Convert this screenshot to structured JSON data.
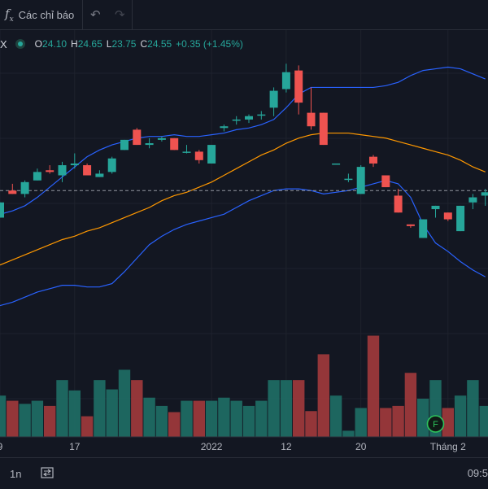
{
  "toolbar": {
    "indicators_label": "Các chỉ báo"
  },
  "legend": {
    "symbol": "X",
    "o_key": "O",
    "o_val": "24.10",
    "h_key": "H",
    "h_val": "24.65",
    "l_key": "L",
    "l_val": "23.75",
    "c_key": "C",
    "c_val": "24.55",
    "change": "+0.35 (+1.45%)"
  },
  "bottom": {
    "interval": "1n",
    "time": "09:5"
  },
  "chart_data": {
    "type": "candlestick",
    "price_range": [
      10.5,
      28.3
    ],
    "volume_max": 100,
    "current_price": 20.4,
    "x_ticks": [
      {
        "label": "9",
        "index": 0
      },
      {
        "label": "17",
        "index": 6
      },
      {
        "label": "2022",
        "index": 17
      },
      {
        "label": "12",
        "index": 23
      },
      {
        "label": "20",
        "index": 29
      },
      {
        "label": "Tháng 2",
        "index": 36
      }
    ],
    "candles": [
      {
        "o": 18.8,
        "h": 19.7,
        "l": 18.8,
        "c": 19.7,
        "v": 40
      },
      {
        "o": 20.4,
        "h": 20.8,
        "l": 20.2,
        "c": 20.2,
        "v": 35
      },
      {
        "o": 20.2,
        "h": 21.0,
        "l": 20.0,
        "c": 20.9,
        "v": 32
      },
      {
        "o": 21.0,
        "h": 21.7,
        "l": 21.0,
        "c": 21.5,
        "v": 35
      },
      {
        "o": 21.6,
        "h": 21.9,
        "l": 21.4,
        "c": 21.5,
        "v": 30
      },
      {
        "o": 21.3,
        "h": 22.1,
        "l": 20.9,
        "c": 21.9,
        "v": 55
      },
      {
        "o": 21.9,
        "h": 22.6,
        "l": 21.7,
        "c": 22.0,
        "v": 45
      },
      {
        "o": 21.9,
        "h": 22.0,
        "l": 21.3,
        "c": 21.3,
        "v": 20
      },
      {
        "o": 21.2,
        "h": 21.6,
        "l": 21.2,
        "c": 21.4,
        "v": 55
      },
      {
        "o": 21.5,
        "h": 22.4,
        "l": 21.4,
        "c": 22.3,
        "v": 46
      },
      {
        "o": 22.8,
        "h": 23.4,
        "l": 22.8,
        "c": 23.4,
        "v": 65
      },
      {
        "o": 24.0,
        "h": 24.1,
        "l": 23.1,
        "c": 23.1,
        "v": 55
      },
      {
        "o": 23.1,
        "h": 23.5,
        "l": 22.9,
        "c": 23.2,
        "v": 38
      },
      {
        "o": 23.4,
        "h": 23.6,
        "l": 23.3,
        "c": 23.5,
        "v": 30
      },
      {
        "o": 23.5,
        "h": 23.5,
        "l": 22.8,
        "c": 22.8,
        "v": 24
      },
      {
        "o": 22.7,
        "h": 23.1,
        "l": 22.6,
        "c": 22.7,
        "v": 35
      },
      {
        "o": 22.7,
        "h": 22.8,
        "l": 22.0,
        "c": 22.2,
        "v": 35
      },
      {
        "o": 22.0,
        "h": 23.1,
        "l": 22.0,
        "c": 23.1,
        "v": 35
      },
      {
        "o": 24.1,
        "h": 24.3,
        "l": 23.9,
        "c": 24.2,
        "v": 38
      },
      {
        "o": 24.6,
        "h": 24.8,
        "l": 24.3,
        "c": 24.6,
        "v": 35
      },
      {
        "o": 24.6,
        "h": 24.9,
        "l": 24.4,
        "c": 24.8,
        "v": 30
      },
      {
        "o": 24.9,
        "h": 25.1,
        "l": 24.6,
        "c": 24.9,
        "v": 35
      },
      {
        "o": 25.3,
        "h": 26.5,
        "l": 24.8,
        "c": 26.3,
        "v": 55
      },
      {
        "o": 26.4,
        "h": 27.9,
        "l": 26.2,
        "c": 27.4,
        "v": 55
      },
      {
        "o": 27.5,
        "h": 27.8,
        "l": 24.9,
        "c": 25.6,
        "v": 55
      },
      {
        "o": 25.0,
        "h": 26.5,
        "l": 24.0,
        "c": 24.2,
        "v": 25
      },
      {
        "o": 25.0,
        "h": 25.0,
        "l": 23.1,
        "c": 23.1,
        "v": 80
      },
      {
        "o": 22.0,
        "h": 22.0,
        "l": 22.0,
        "c": 22.0,
        "v": 40
      },
      {
        "o": 21.1,
        "h": 21.4,
        "l": 20.9,
        "c": 21.1,
        "v": 6
      },
      {
        "o": 20.2,
        "h": 21.9,
        "l": 20.2,
        "c": 21.8,
        "v": 28
      },
      {
        "o": 22.4,
        "h": 22.5,
        "l": 21.8,
        "c": 22.0,
        "v": 98
      },
      {
        "o": 21.3,
        "h": 21.3,
        "l": 20.6,
        "c": 20.6,
        "v": 28
      },
      {
        "o": 20.1,
        "h": 20.5,
        "l": 19.1,
        "c": 19.1,
        "v": 30
      },
      {
        "o": 18.4,
        "h": 18.4,
        "l": 18.2,
        "c": 18.3,
        "v": 62
      },
      {
        "o": 17.6,
        "h": 18.7,
        "l": 17.6,
        "c": 18.7,
        "v": 37
      },
      {
        "o": 19.3,
        "h": 19.5,
        "l": 18.8,
        "c": 19.5,
        "v": 55
      },
      {
        "o": 19.1,
        "h": 19.1,
        "l": 18.6,
        "c": 18.7,
        "v": 28
      },
      {
        "o": 18.0,
        "h": 19.5,
        "l": 18.0,
        "c": 19.5,
        "v": 40
      },
      {
        "o": 19.7,
        "h": 20.2,
        "l": 19.3,
        "c": 20.0,
        "v": 55
      },
      {
        "o": 20.1,
        "h": 20.5,
        "l": 19.5,
        "c": 20.3,
        "v": 30
      }
    ],
    "indicators": [
      {
        "color": "#2962ff",
        "values": [
          19.0,
          19.2,
          19.5,
          20.0,
          20.6,
          21.2,
          21.8,
          22.4,
          22.8,
          23.1,
          23.3,
          23.5,
          23.6,
          23.6,
          23.7,
          23.6,
          23.6,
          23.7,
          23.8,
          24.0,
          24.1,
          24.3,
          24.6,
          25.3,
          26.1,
          26.5,
          26.5,
          26.5,
          26.5,
          26.5,
          26.5,
          26.6,
          26.8,
          27.2,
          27.5,
          27.6,
          27.7,
          27.6,
          27.3,
          27.0
        ]
      },
      {
        "color": "#2962ff",
        "values": [
          13.6,
          13.8,
          14.1,
          14.4,
          14.6,
          14.8,
          14.8,
          14.7,
          14.7,
          14.9,
          15.6,
          16.4,
          17.2,
          17.7,
          18.1,
          18.4,
          18.6,
          18.8,
          19.0,
          19.4,
          19.8,
          20.1,
          20.4,
          20.5,
          20.5,
          20.4,
          20.2,
          20.3,
          20.4,
          20.6,
          20.8,
          21.0,
          20.8,
          20.0,
          18.4,
          17.3,
          16.8,
          16.2,
          15.7,
          15.3
        ]
      },
      {
        "color": "#ff9800",
        "values": [
          16.0,
          16.3,
          16.6,
          16.9,
          17.2,
          17.5,
          17.7,
          18.0,
          18.2,
          18.5,
          18.8,
          19.1,
          19.4,
          19.8,
          20.1,
          20.3,
          20.6,
          20.9,
          21.3,
          21.7,
          22.1,
          22.5,
          22.8,
          23.2,
          23.5,
          23.7,
          23.8,
          23.8,
          23.8,
          23.7,
          23.6,
          23.5,
          23.3,
          23.1,
          22.9,
          22.7,
          22.5,
          22.2,
          21.8,
          21.5
        ]
      }
    ]
  }
}
